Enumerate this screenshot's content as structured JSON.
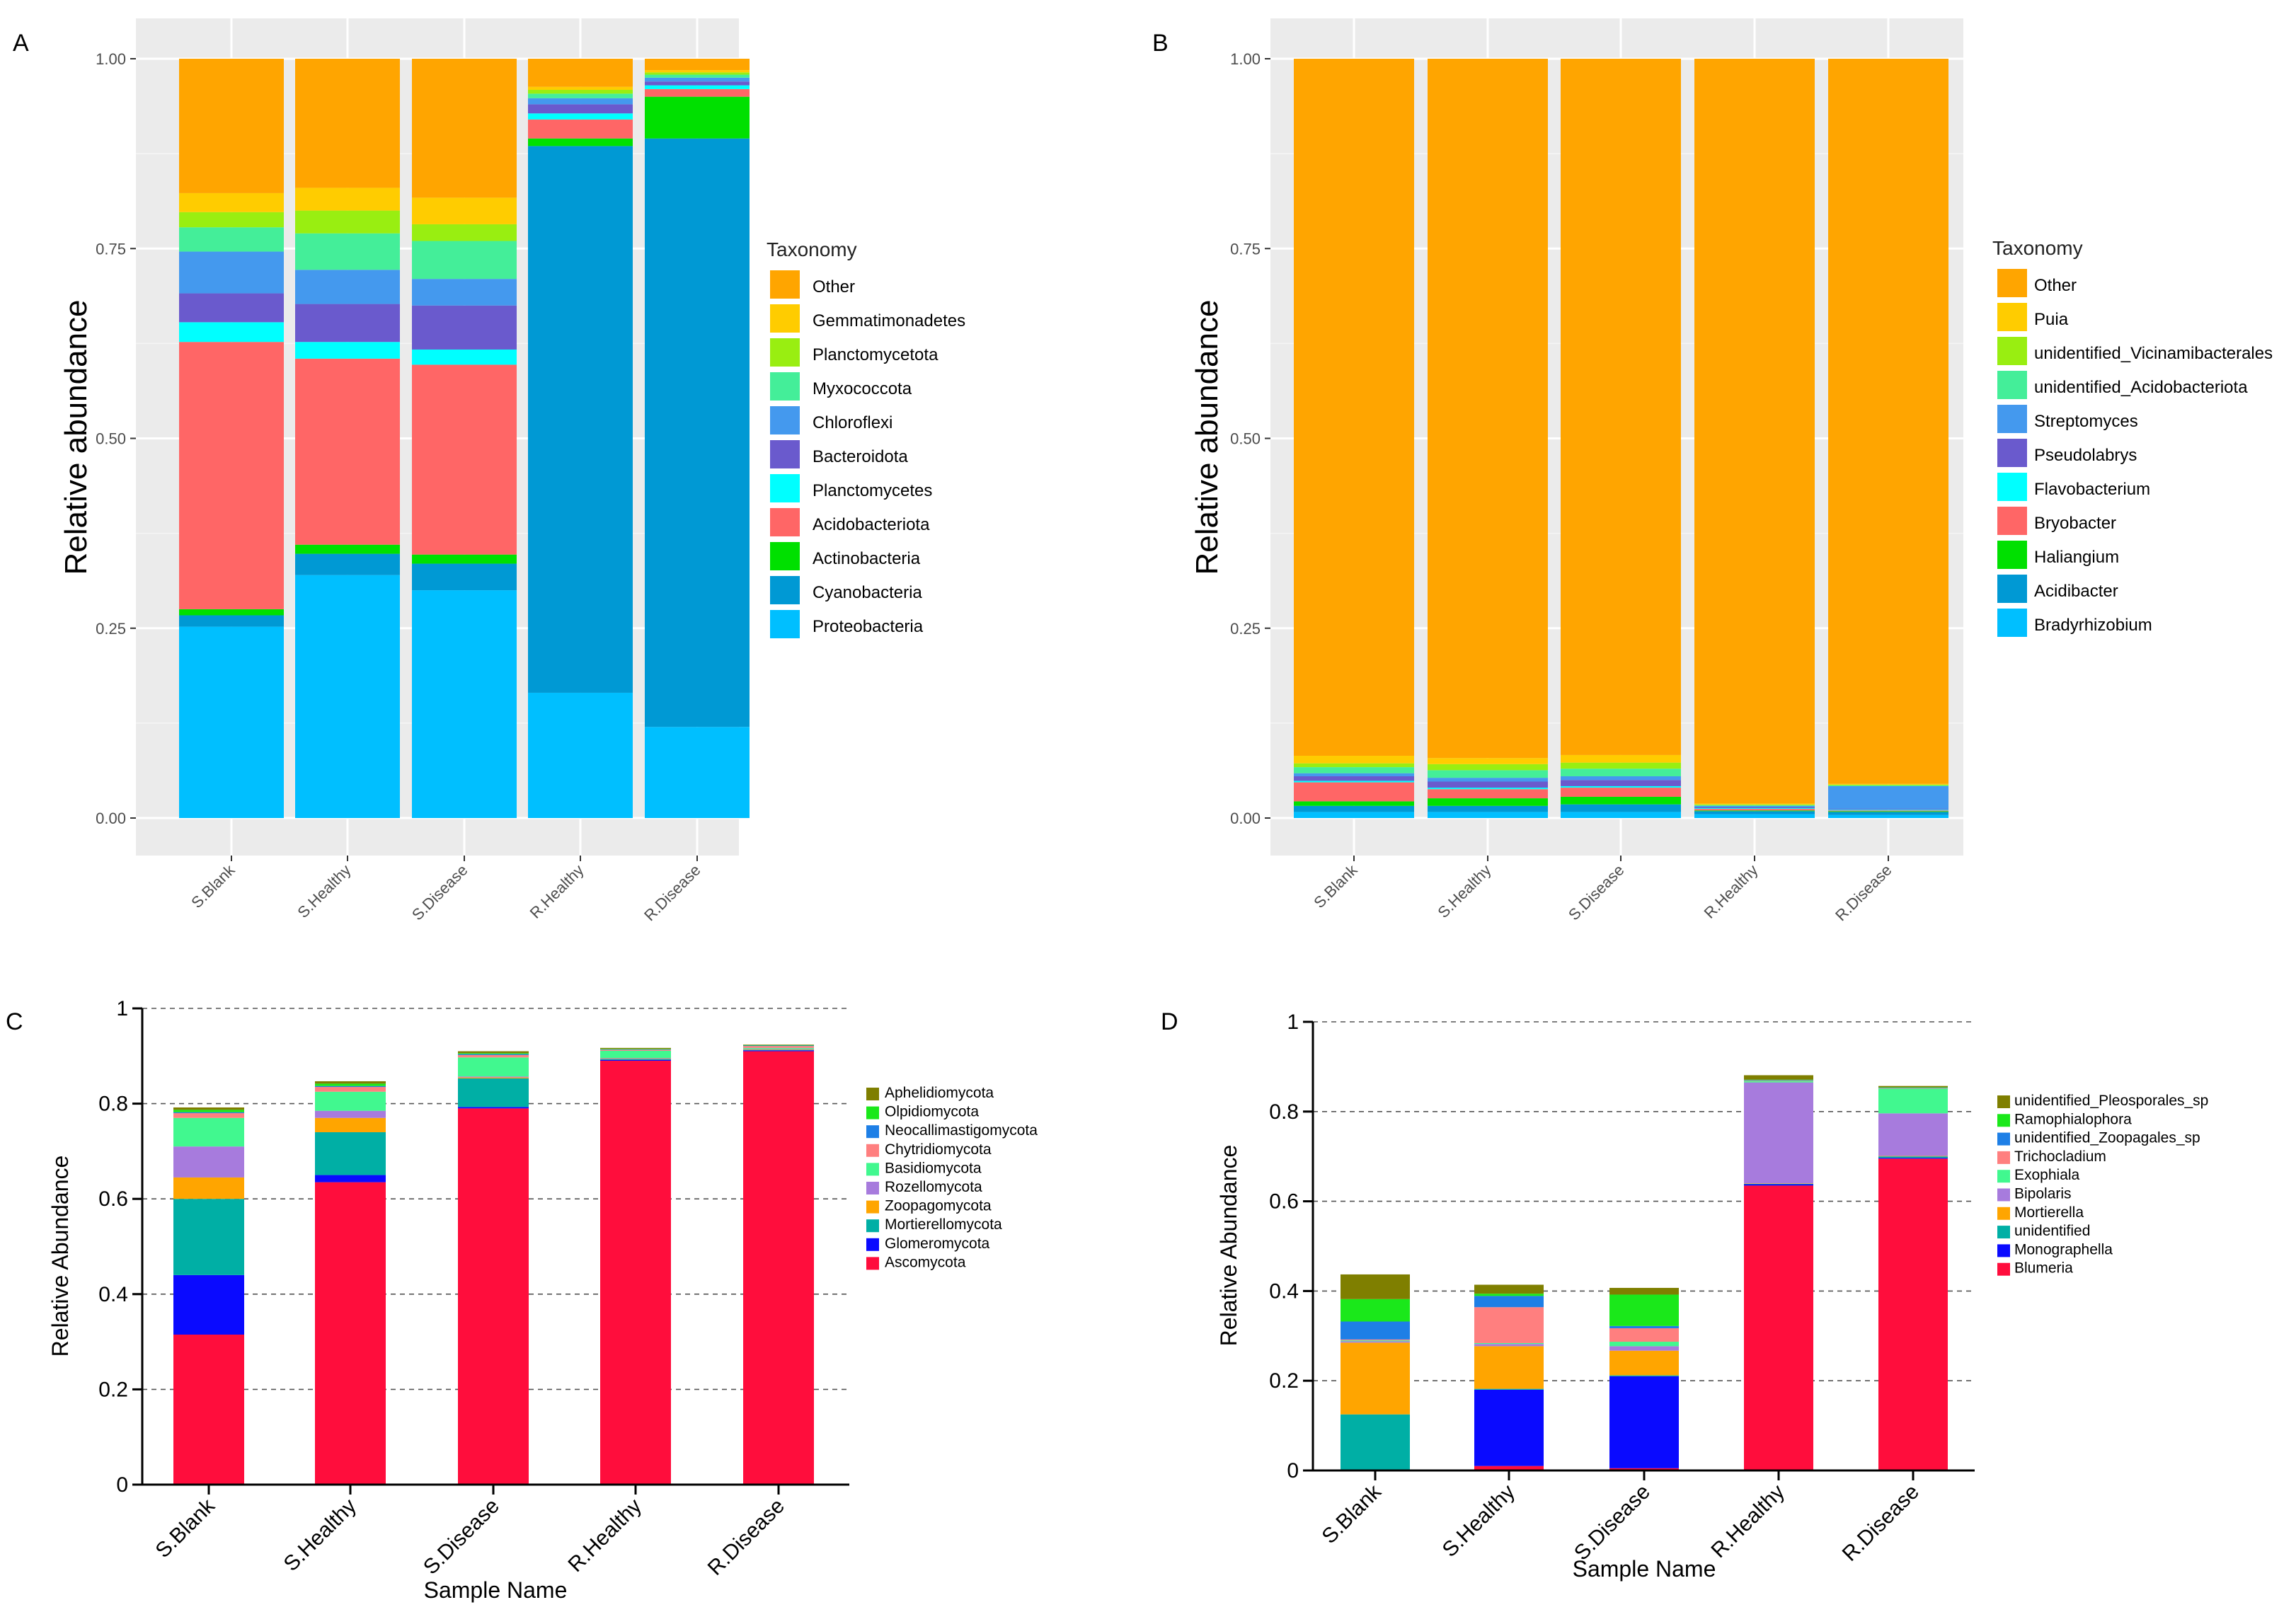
{
  "chart_data": [
    {
      "panel": "A",
      "type": "bar",
      "stacked": true,
      "xlabel": "",
      "ylabel": "Relative abundance",
      "ylim": [
        0,
        1
      ],
      "yticks": [
        "0.00",
        "0.25",
        "0.50",
        "0.75",
        "1.00"
      ],
      "categories": [
        "S.Blank",
        "S.Healthy",
        "S.Disease",
        "R.Healthy",
        "R.Disease"
      ],
      "legend_title": "Taxonomy",
      "legend_order": [
        "Other",
        "Gemmatimonadetes",
        "Planctomycetota",
        "Myxococcota",
        "Chloroflexi",
        "Bacteroidota",
        "Planctomycetes",
        "Acidobacteriota",
        "Actinobacteria",
        "Cyanobacteria",
        "Proteobacteria"
      ],
      "series": [
        {
          "name": "Proteobacteria",
          "color": "#00BFFF",
          "values": [
            0.252,
            0.32,
            0.3,
            0.165,
            0.12
          ]
        },
        {
          "name": "Cyanobacteria",
          "color": "#0099D4",
          "values": [
            0.015,
            0.028,
            0.035,
            0.72,
            0.775
          ]
        },
        {
          "name": "Actinobacteria",
          "color": "#00E000",
          "values": [
            0.008,
            0.012,
            0.012,
            0.01,
            0.055
          ]
        },
        {
          "name": "Acidobacteriota",
          "color": "#FF6666",
          "values": [
            0.352,
            0.245,
            0.25,
            0.025,
            0.01
          ]
        },
        {
          "name": "Planctomycetes",
          "color": "#00FFFF",
          "values": [
            0.026,
            0.022,
            0.02,
            0.008,
            0.005
          ]
        },
        {
          "name": "Bacteroidota",
          "color": "#6A5ACD",
          "values": [
            0.038,
            0.05,
            0.058,
            0.012,
            0.005
          ]
        },
        {
          "name": "Chloroflexi",
          "color": "#4499EE",
          "values": [
            0.055,
            0.045,
            0.035,
            0.008,
            0.005
          ]
        },
        {
          "name": "Myxococcota",
          "color": "#44EE99",
          "values": [
            0.032,
            0.048,
            0.05,
            0.006,
            0.004
          ]
        },
        {
          "name": "Planctomycetota",
          "color": "#99EE11",
          "values": [
            0.02,
            0.03,
            0.022,
            0.005,
            0.003
          ]
        },
        {
          "name": "Gemmatimonadetes",
          "color": "#FFCC00",
          "values": [
            0.025,
            0.03,
            0.035,
            0.004,
            0.003
          ]
        },
        {
          "name": "Other",
          "color": "#FFA500",
          "values": [
            0.177,
            0.17,
            0.183,
            0.037,
            0.015
          ]
        }
      ]
    },
    {
      "panel": "B",
      "type": "bar",
      "stacked": true,
      "xlabel": "",
      "ylabel": "Relative abundance",
      "ylim": [
        0,
        1
      ],
      "yticks": [
        "0.00",
        "0.25",
        "0.50",
        "0.75",
        "1.00"
      ],
      "categories": [
        "S.Blank",
        "S.Healthy",
        "S.Disease",
        "R.Healthy",
        "R.Disease"
      ],
      "legend_title": "Taxonomy",
      "legend_order": [
        "Other",
        "Puia",
        "unidentified_Vicinamibacterales",
        "unidentified_Acidobacteriota",
        "Streptomyces",
        "Pseudolabrys",
        "Flavobacterium",
        "Bryobacter",
        "Haliangium",
        "Acidibacter",
        "Bradyrhizobium"
      ],
      "series": [
        {
          "name": "Bradyrhizobium",
          "color": "#00BFFF",
          "values": [
            0.008,
            0.008,
            0.008,
            0.005,
            0.004
          ]
        },
        {
          "name": "Acidibacter",
          "color": "#0099D4",
          "values": [
            0.008,
            0.008,
            0.01,
            0.004,
            0.004
          ]
        },
        {
          "name": "Haliangium",
          "color": "#00E000",
          "values": [
            0.006,
            0.01,
            0.01,
            0.001,
            0.001
          ]
        },
        {
          "name": "Bryobacter",
          "color": "#FF6666",
          "values": [
            0.025,
            0.012,
            0.012,
            0.002,
            0.001
          ]
        },
        {
          "name": "Flavobacterium",
          "color": "#00FFFF",
          "values": [
            0.002,
            0.002,
            0.002,
            0.001,
            0.001
          ]
        },
        {
          "name": "Pseudolabrys",
          "color": "#6A5ACD",
          "values": [
            0.006,
            0.008,
            0.008,
            0.001,
            0.001
          ]
        },
        {
          "name": "Streptomyces",
          "color": "#4499EE",
          "values": [
            0.004,
            0.005,
            0.005,
            0.002,
            0.03
          ]
        },
        {
          "name": "unidentified_Acidobacteriota",
          "color": "#44EE99",
          "values": [
            0.008,
            0.01,
            0.01,
            0.001,
            0.001
          ]
        },
        {
          "name": "unidentified_Vicinamibacterales",
          "color": "#99EE11",
          "values": [
            0.005,
            0.008,
            0.008,
            0.001,
            0.001
          ]
        },
        {
          "name": "Puia",
          "color": "#FFCC00",
          "values": [
            0.01,
            0.008,
            0.01,
            0.001,
            0.001
          ]
        },
        {
          "name": "Other",
          "color": "#FFA500",
          "values": [
            0.918,
            0.921,
            0.917,
            0.981,
            0.955
          ]
        }
      ]
    },
    {
      "panel": "C",
      "type": "bar",
      "stacked": true,
      "xlabel": "Sample Name",
      "ylabel": "Relative Abundance",
      "ylim": [
        0,
        1
      ],
      "yticks": [
        "0",
        "0.2",
        "0.4",
        "0.6",
        "0.8",
        "1"
      ],
      "categories": [
        "S.Blank",
        "S.Healthy",
        "S.Disease",
        "R.Healthy",
        "R.Disease"
      ],
      "legend_title": "",
      "legend_order": [
        "Aphelidiomycota",
        "Olpidiomycota",
        "Neocallimastigomycota",
        "Chytridiomycota",
        "Basidiomycota",
        "Rozellomycota",
        "Zoopagomycota",
        "Mortierellomycota",
        "Glomeromycota",
        "Ascomycota"
      ],
      "series": [
        {
          "name": "Ascomycota",
          "color": "#FF0D3C",
          "values": [
            0.315,
            0.635,
            0.79,
            0.89,
            0.91
          ]
        },
        {
          "name": "Glomeromycota",
          "color": "#0A0AFF",
          "values": [
            0.125,
            0.015,
            0.003,
            0.002,
            0.002
          ]
        },
        {
          "name": "Mortierellomycota",
          "color": "#00AFA5",
          "values": [
            0.16,
            0.09,
            0.06,
            0.002,
            0.001
          ]
        },
        {
          "name": "Zoopagomycota",
          "color": "#FFA500",
          "values": [
            0.045,
            0.03,
            0.002,
            0.001,
            0.001
          ]
        },
        {
          "name": "Rozellomycota",
          "color": "#A77BDD",
          "values": [
            0.065,
            0.015,
            0.002,
            0.001,
            0.001
          ]
        },
        {
          "name": "Basidiomycota",
          "color": "#41F88F",
          "values": [
            0.06,
            0.04,
            0.04,
            0.015,
            0.002
          ]
        },
        {
          "name": "Chytridiomycota",
          "color": "#FF7F7F",
          "values": [
            0.01,
            0.01,
            0.005,
            0.002,
            0.004
          ]
        },
        {
          "name": "Neocallimastigomycota",
          "color": "#1E7FE6",
          "values": [
            0.002,
            0.002,
            0.002,
            0.001,
            0.001
          ]
        },
        {
          "name": "Olpidiomycota",
          "color": "#1AE81A",
          "values": [
            0.005,
            0.005,
            0.002,
            0.001,
            0.001
          ]
        },
        {
          "name": "Aphelidiomycota",
          "color": "#7F7F00",
          "values": [
            0.005,
            0.005,
            0.004,
            0.002,
            0.001
          ]
        }
      ]
    },
    {
      "panel": "D",
      "type": "bar",
      "stacked": true,
      "xlabel": "Sample Name",
      "ylabel": "Relative Abundance",
      "ylim": [
        0,
        1
      ],
      "yticks": [
        "0",
        "0.2",
        "0.4",
        "0.6",
        "0.8",
        "1"
      ],
      "categories": [
        "S.Blank",
        "S.Healthy",
        "S.Disease",
        "R.Healthy",
        "R.Disease"
      ],
      "legend_title": "",
      "legend_order": [
        "unidentified_Pleosporales_sp",
        "Ramophialophora",
        "unidentified_Zoopagales_sp",
        "Trichocladium",
        "Exophiala",
        "Bipolaris",
        "Mortierella",
        "unidentified",
        "Monographella",
        "Blumeria"
      ],
      "series": [
        {
          "name": "Blumeria",
          "color": "#FF0D3C",
          "values": [
            0.0,
            0.01,
            0.005,
            0.635,
            0.695
          ]
        },
        {
          "name": "Monographella",
          "color": "#0A0AFF",
          "values": [
            0.0,
            0.17,
            0.205,
            0.003,
            0.002
          ]
        },
        {
          "name": "unidentified",
          "color": "#00AFA5",
          "values": [
            0.125,
            0.002,
            0.002,
            0.001,
            0.003
          ]
        },
        {
          "name": "Mortierella",
          "color": "#FFA500",
          "values": [
            0.16,
            0.095,
            0.055,
            0.001,
            0.001
          ]
        },
        {
          "name": "Bipolaris",
          "color": "#A77BDD",
          "values": [
            0.003,
            0.005,
            0.01,
            0.225,
            0.095
          ]
        },
        {
          "name": "Exophiala",
          "color": "#41F88F",
          "values": [
            0.002,
            0.002,
            0.01,
            0.003,
            0.055
          ]
        },
        {
          "name": "Trichocladium",
          "color": "#FF7F7F",
          "values": [
            0.002,
            0.08,
            0.03,
            0.001,
            0.001
          ]
        },
        {
          "name": "unidentified_Zoopagales_sp",
          "color": "#1E7FE6",
          "values": [
            0.04,
            0.025,
            0.005,
            0.001,
            0.001
          ]
        },
        {
          "name": "Ramophialophora",
          "color": "#1AE81A",
          "values": [
            0.05,
            0.005,
            0.07,
            0.001,
            0.001
          ]
        },
        {
          "name": "unidentified_Pleosporales_sp",
          "color": "#7F7F00",
          "values": [
            0.055,
            0.02,
            0.015,
            0.01,
            0.003
          ]
        }
      ]
    }
  ]
}
